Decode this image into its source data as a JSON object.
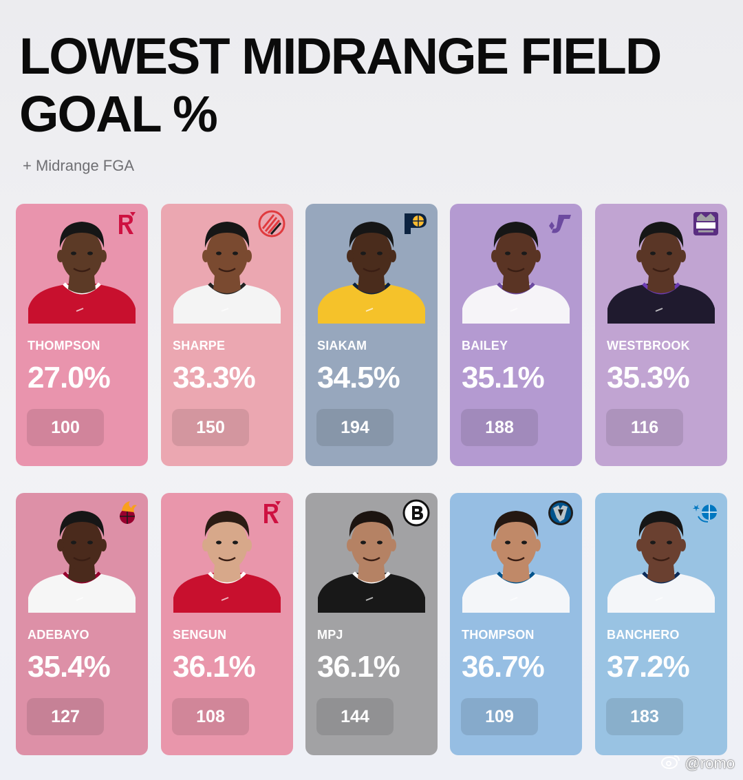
{
  "title": "LOWEST MIDRANGE FIELD GOAL %",
  "subtitle": "+ Midrange FGA",
  "players": [
    {
      "name": "THOMPSON",
      "pct": "27.0%",
      "fga": "100",
      "team_icon": "rockets-logo-icon",
      "card_color": "#e994ad",
      "skin": "#5c3a26",
      "jersey": "#c8102e",
      "jersey_trim": "#ffffff",
      "hair": "#161616"
    },
    {
      "name": "SHARPE",
      "pct": "33.3%",
      "fga": "150",
      "team_icon": "trail-blazers-logo-icon",
      "card_color": "#eba7b1",
      "skin": "#7a4a30",
      "jersey": "#f4f4f4",
      "jersey_trim": "#222222",
      "hair": "#161616"
    },
    {
      "name": "SIAKAM",
      "pct": "34.5%",
      "fga": "194",
      "team_icon": "pacers-logo-icon",
      "card_color": "#97a7bd",
      "skin": "#4a2c1c",
      "jersey": "#f5c22a",
      "jersey_trim": "#0c2340",
      "hair": "#161616"
    },
    {
      "name": "BAILEY",
      "pct": "35.1%",
      "fga": "188",
      "team_icon": "jazz-logo-icon",
      "card_color": "#b49ad1",
      "skin": "#5a3424",
      "jersey": "#f6f4f8",
      "jersey_trim": "#6c4aa0",
      "hair": "#161616"
    },
    {
      "name": "WESTBROOK",
      "pct": "35.3%",
      "fga": "116",
      "team_icon": "kings-logo-icon",
      "card_color": "#c1a4d2",
      "skin": "#5a3626",
      "jersey": "#1f1a2e",
      "jersey_trim": "#6d3cb3",
      "hair": "#161616"
    },
    {
      "name": "ADEBAYO",
      "pct": "35.4%",
      "fga": "127",
      "team_icon": "heat-logo-icon",
      "card_color": "#dd90a7",
      "skin": "#4a2a1c",
      "jersey": "#f6f6f6",
      "jersey_trim": "#98002e",
      "hair": "#161616"
    },
    {
      "name": "SENGUN",
      "pct": "36.1%",
      "fga": "108",
      "team_icon": "rockets-logo-icon",
      "card_color": "#e996ab",
      "skin": "#d7a88a",
      "jersey": "#c8102e",
      "jersey_trim": "#ffffff",
      "hair": "#2b1c14"
    },
    {
      "name": "MPJ",
      "pct": "36.1%",
      "fga": "144",
      "team_icon": "nets-logo-icon",
      "card_color": "#a2a2a4",
      "skin": "#b58264",
      "jersey": "#181818",
      "jersey_trim": "#ffffff",
      "hair": "#1c1410"
    },
    {
      "name": "THOMPSON",
      "pct": "36.7%",
      "fga": "109",
      "team_icon": "mavericks-logo-icon",
      "card_color": "#96bee3",
      "skin": "#c08968",
      "jersey": "#f4f6f9",
      "jersey_trim": "#00538c",
      "hair": "#241812"
    },
    {
      "name": "BANCHERO",
      "pct": "37.2%",
      "fga": "183",
      "team_icon": "magic-logo-icon",
      "card_color": "#99c3e3",
      "skin": "#6a4030",
      "jersey": "#f4f6f9",
      "jersey_trim": "#0c2c5a",
      "hair": "#161616"
    }
  ],
  "watermark": "@romo"
}
